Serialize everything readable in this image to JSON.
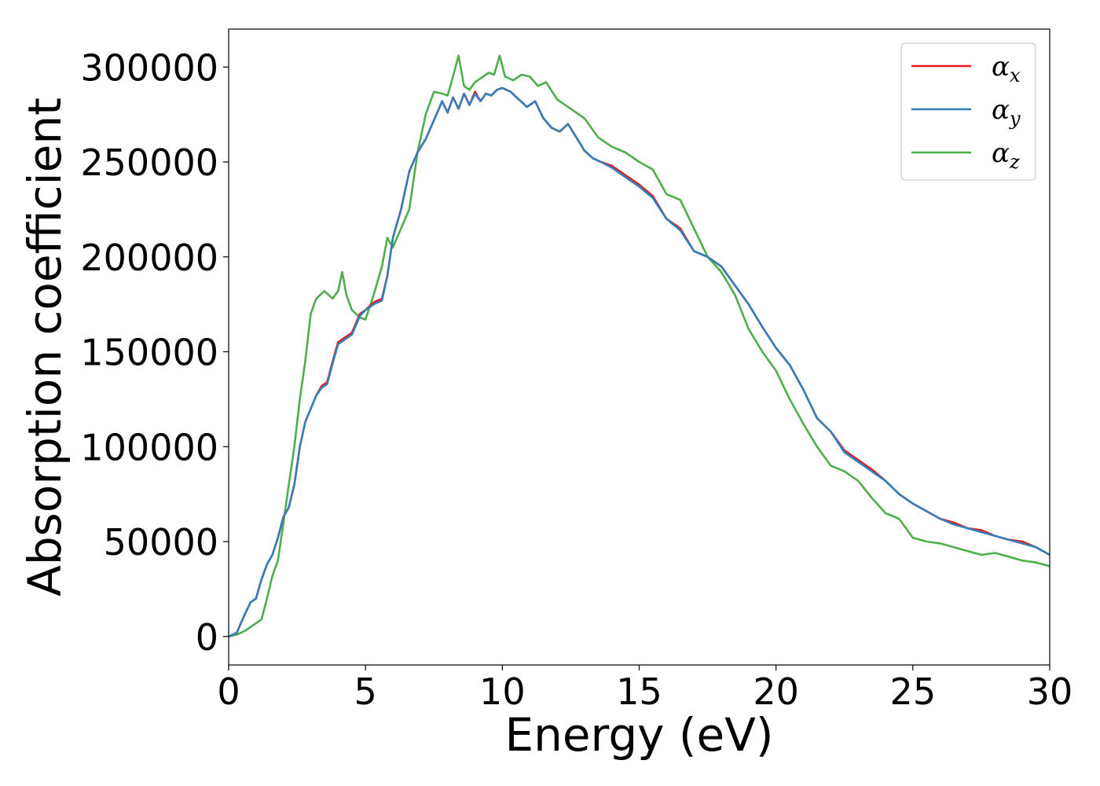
{
  "chart_data": {
    "type": "line",
    "xlabel": "Energy (eV)",
    "ylabel": "Absorption coefficient",
    "xlim": [
      0,
      30
    ],
    "ylim": [
      -15000,
      320000
    ],
    "xticks": [
      "0",
      "5",
      "10",
      "15",
      "20",
      "25",
      "30"
    ],
    "yticks": [
      "0",
      "50000",
      "100000",
      "150000",
      "200000",
      "250000",
      "300000"
    ],
    "grid": false,
    "legend_position": "top-right",
    "series": [
      {
        "name": "αx",
        "name_base": "α",
        "name_sub": "x",
        "color": "#e41a1c",
        "x": [
          0,
          0.3,
          0.6,
          0.8,
          1.0,
          1.2,
          1.4,
          1.6,
          1.8,
          2.0,
          2.2,
          2.4,
          2.6,
          2.8,
          3.0,
          3.2,
          3.4,
          3.6,
          3.8,
          4.0,
          4.2,
          4.5,
          4.8,
          5.0,
          5.3,
          5.6,
          5.8,
          6.0,
          6.3,
          6.6,
          6.9,
          7.2,
          7.5,
          7.8,
          8.0,
          8.2,
          8.4,
          8.6,
          8.8,
          9.0,
          9.2,
          9.4,
          9.6,
          9.8,
          10.0,
          10.3,
          10.6,
          10.9,
          11.2,
          11.5,
          11.8,
          12.1,
          12.4,
          12.7,
          13.0,
          13.3,
          13.6,
          14.0,
          14.5,
          15.0,
          15.5,
          16.0,
          16.5,
          17.0,
          17.5,
          18.0,
          18.5,
          19.0,
          19.5,
          20.0,
          20.5,
          21.0,
          21.5,
          22.0,
          22.5,
          23.0,
          23.5,
          24.0,
          24.5,
          25.0,
          25.5,
          26.0,
          26.5,
          27.0,
          27.5,
          28.0,
          28.5,
          29.0,
          29.5,
          30.0
        ],
        "y": [
          0,
          2000,
          12000,
          18000,
          20000,
          30000,
          38000,
          43000,
          52000,
          63000,
          68000,
          80000,
          100000,
          113000,
          120000,
          127000,
          132000,
          134000,
          145000,
          155000,
          157000,
          160000,
          170000,
          172000,
          176000,
          178000,
          190000,
          210000,
          225000,
          245000,
          255000,
          262000,
          272000,
          282000,
          276000,
          284000,
          278000,
          286000,
          280000,
          287000,
          282000,
          286000,
          285000,
          288000,
          289000,
          287000,
          283000,
          279000,
          282000,
          273000,
          268000,
          266000,
          270000,
          263000,
          256000,
          252000,
          250000,
          248000,
          243000,
          238000,
          232000,
          220000,
          215000,
          203000,
          200000,
          195000,
          185000,
          175000,
          163000,
          152000,
          143000,
          130000,
          115000,
          108000,
          98000,
          93000,
          88000,
          82000,
          75000,
          70000,
          66000,
          62000,
          60000,
          57000,
          56000,
          53000,
          51000,
          50000,
          47000,
          43000
        ]
      },
      {
        "name": "αy",
        "name_base": "α",
        "name_sub": "y",
        "color": "#377eb8",
        "x": [
          0,
          0.3,
          0.6,
          0.8,
          1.0,
          1.2,
          1.4,
          1.6,
          1.8,
          2.0,
          2.2,
          2.4,
          2.6,
          2.8,
          3.0,
          3.2,
          3.4,
          3.6,
          3.8,
          4.0,
          4.2,
          4.5,
          4.8,
          5.0,
          5.3,
          5.6,
          5.8,
          6.0,
          6.3,
          6.6,
          6.9,
          7.2,
          7.5,
          7.8,
          8.0,
          8.2,
          8.4,
          8.6,
          8.8,
          9.0,
          9.2,
          9.4,
          9.6,
          9.8,
          10.0,
          10.3,
          10.6,
          10.9,
          11.2,
          11.5,
          11.8,
          12.1,
          12.4,
          12.7,
          13.0,
          13.3,
          13.6,
          14.0,
          14.5,
          15.0,
          15.5,
          16.0,
          16.5,
          17.0,
          17.5,
          18.0,
          18.5,
          19.0,
          19.5,
          20.0,
          20.5,
          21.0,
          21.5,
          22.0,
          22.5,
          23.0,
          23.5,
          24.0,
          24.5,
          25.0,
          25.5,
          26.0,
          26.5,
          27.0,
          27.5,
          28.0,
          28.5,
          29.0,
          29.5,
          30.0
        ],
        "y": [
          0,
          2000,
          12000,
          18000,
          20000,
          30000,
          38000,
          43000,
          52000,
          63000,
          68000,
          80000,
          100000,
          113000,
          120000,
          127000,
          131000,
          133000,
          144000,
          154000,
          156000,
          159000,
          169000,
          172000,
          175000,
          177000,
          190000,
          210000,
          225000,
          245000,
          255000,
          262000,
          272000,
          282000,
          276000,
          284000,
          278000,
          286000,
          280000,
          286000,
          282000,
          286000,
          285000,
          288000,
          289000,
          287000,
          283000,
          279000,
          282000,
          273000,
          268000,
          266000,
          270000,
          263000,
          256000,
          252000,
          250000,
          247000,
          242000,
          237000,
          231000,
          220000,
          214000,
          203000,
          200000,
          195000,
          185000,
          175000,
          163000,
          152000,
          143000,
          130000,
          115000,
          108000,
          97000,
          92000,
          87000,
          82000,
          75000,
          70000,
          66000,
          62000,
          59000,
          57000,
          55000,
          53000,
          51000,
          49000,
          47000,
          43000
        ]
      },
      {
        "name": "αz",
        "name_base": "α",
        "name_sub": "z",
        "color": "#4daf4a",
        "x": [
          0,
          0.3,
          0.6,
          0.9,
          1.2,
          1.4,
          1.6,
          1.8,
          2.0,
          2.2,
          2.4,
          2.6,
          2.8,
          3.0,
          3.2,
          3.5,
          3.8,
          4.0,
          4.15,
          4.3,
          4.5,
          4.8,
          5.0,
          5.3,
          5.6,
          5.8,
          6.0,
          6.3,
          6.6,
          6.9,
          7.2,
          7.5,
          7.8,
          8.0,
          8.2,
          8.4,
          8.6,
          8.8,
          9.0,
          9.2,
          9.5,
          9.7,
          9.9,
          10.1,
          10.4,
          10.7,
          11.0,
          11.3,
          11.6,
          12.0,
          12.5,
          13.0,
          13.5,
          14.0,
          14.5,
          15.0,
          15.5,
          16.0,
          16.5,
          17.0,
          17.5,
          18.0,
          18.5,
          19.0,
          19.5,
          20.0,
          20.5,
          21.0,
          21.5,
          22.0,
          22.5,
          23.0,
          23.5,
          24.0,
          24.5,
          25.0,
          25.5,
          26.0,
          26.5,
          27.0,
          27.5,
          28.0,
          28.5,
          29.0,
          29.5,
          30.0
        ],
        "y": [
          0,
          1000,
          3000,
          6000,
          9000,
          20000,
          32000,
          40000,
          60000,
          80000,
          100000,
          125000,
          145000,
          170000,
          178000,
          182000,
          178000,
          182000,
          192000,
          180000,
          172000,
          168000,
          167000,
          180000,
          195000,
          210000,
          205000,
          215000,
          225000,
          255000,
          275000,
          287000,
          286000,
          285000,
          295000,
          306000,
          290000,
          288000,
          292000,
          294000,
          297000,
          296000,
          306000,
          295000,
          293000,
          296000,
          295000,
          290000,
          292000,
          283000,
          278000,
          273000,
          263000,
          258000,
          255000,
          250000,
          246000,
          233000,
          230000,
          215000,
          200000,
          192000,
          180000,
          162000,
          150000,
          140000,
          125000,
          112000,
          100000,
          90000,
          87000,
          82000,
          73000,
          65000,
          62000,
          52000,
          50000,
          49000,
          47000,
          45000,
          43000,
          44000,
          42000,
          40000,
          39000,
          37000
        ]
      }
    ]
  }
}
